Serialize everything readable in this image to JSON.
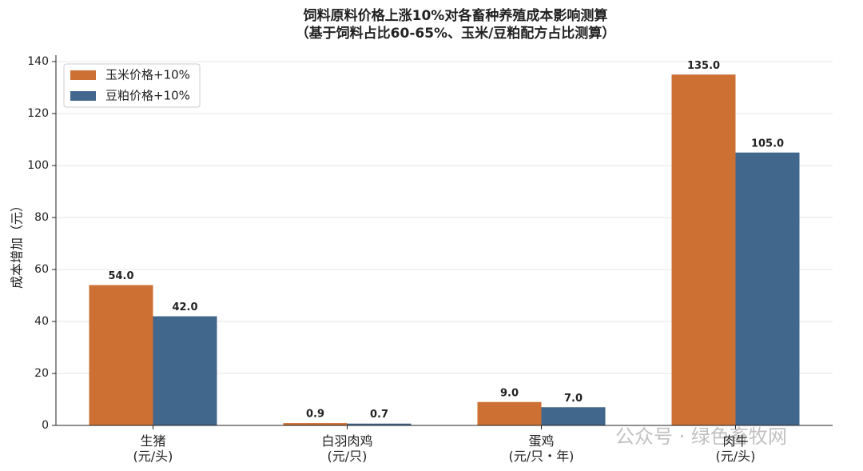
{
  "chart_data": {
    "type": "bar",
    "title": "饲料原料价格上涨10%对各畜种养殖成本影响测算",
    "subtitle": "（基于饲料占比60-65%、玉米/豆粕配方占比测算）",
    "y_label": "成本增加（元）",
    "categories": [
      "生猪\n(元/头)",
      "白羽肉鸡\n(元/只)",
      "蛋鸡\n(元/只・年)",
      "肉牛\n(元/头)"
    ],
    "series": [
      {
        "name": "玉米价格+10%",
        "color": "#cc7033",
        "values": [
          54,
          0.9,
          9,
          135
        ],
        "value_labels": [
          "54.0",
          "0.9",
          "9.0",
          "135.0"
        ]
      },
      {
        "name": "豆粕价格+10%",
        "color": "#41678c",
        "values": [
          42,
          0.7,
          7,
          105
        ],
        "value_labels": [
          "42.0",
          "0.7",
          "7.0",
          "105.0"
        ]
      }
    ],
    "ylim": [
      0,
      140
    ],
    "yticks": [
      0,
      20,
      40,
      60,
      80,
      100,
      120,
      140
    ],
    "grid": true,
    "legend": "upper-left",
    "watermark": "公众号 · 绿色畜牧网"
  }
}
